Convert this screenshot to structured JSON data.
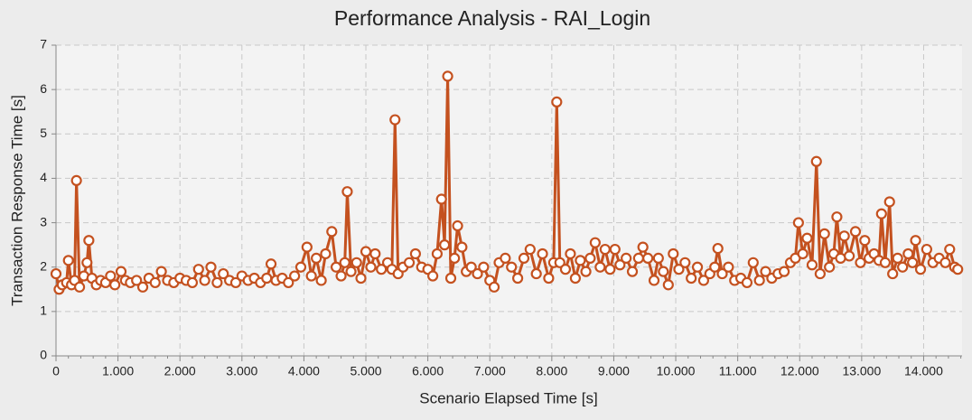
{
  "chart_data": {
    "type": "line",
    "title": "Performance Analysis - RAI_Login",
    "x_label": "Scenario Elapsed Time [s]",
    "y_label": "Transaction Response Time [s]",
    "color": "#c4511f",
    "grid": true,
    "xlim": [
      0,
      14.62
    ],
    "ylim": [
      0,
      7
    ],
    "xticks": [
      0,
      {
        "value": 1,
        "label": "1.000"
      },
      {
        "value": 2,
        "label": "2.000"
      },
      {
        "value": 3,
        "label": "3.000"
      },
      {
        "value": 4,
        "label": "4.000"
      },
      {
        "value": 5,
        "label": "5.000"
      },
      {
        "value": 6,
        "label": "6.000"
      },
      {
        "value": 7,
        "label": "7.000"
      },
      {
        "value": 8,
        "label": "8.000"
      },
      {
        "value": 9,
        "label": "9.000"
      },
      {
        "value": 10,
        "label": "10.000"
      },
      {
        "value": 11,
        "label": "11.000"
      },
      {
        "value": 12,
        "label": "12.000"
      },
      {
        "value": 13,
        "label": "13.000"
      },
      {
        "value": 14,
        "label": "14.000"
      }
    ],
    "yticks": [
      0,
      1,
      2,
      3,
      4,
      5,
      6,
      7
    ],
    "x": [
      0,
      0.05,
      0.1,
      0.17,
      0.2,
      0.25,
      0.3,
      0.33,
      0.38,
      0.45,
      0.5,
      0.53,
      0.58,
      0.65,
      0.72,
      0.8,
      0.88,
      0.95,
      1.05,
      1.12,
      1.2,
      1.3,
      1.4,
      1.5,
      1.6,
      1.7,
      1.8,
      1.9,
      2.0,
      2.1,
      2.2,
      2.3,
      2.4,
      2.5,
      2.6,
      2.7,
      2.8,
      2.9,
      3.0,
      3.1,
      3.2,
      3.3,
      3.4,
      3.47,
      3.55,
      3.65,
      3.75,
      3.85,
      3.95,
      4.05,
      4.12,
      4.2,
      4.28,
      4.35,
      4.45,
      4.52,
      4.6,
      4.66,
      4.7,
      4.76,
      4.85,
      4.92,
      5.0,
      5.08,
      5.15,
      5.25,
      5.35,
      5.42,
      5.47,
      5.52,
      5.6,
      5.7,
      5.8,
      5.9,
      6.0,
      6.08,
      6.15,
      6.22,
      6.27,
      6.32,
      6.37,
      6.43,
      6.48,
      6.55,
      6.62,
      6.7,
      6.8,
      6.9,
      7.0,
      7.07,
      7.15,
      7.25,
      7.35,
      7.45,
      7.55,
      7.65,
      7.75,
      7.85,
      7.95,
      8.03,
      8.08,
      8.13,
      8.22,
      8.3,
      8.38,
      8.46,
      8.55,
      8.62,
      8.7,
      8.78,
      8.86,
      8.94,
      9.02,
      9.1,
      9.2,
      9.3,
      9.4,
      9.47,
      9.55,
      9.65,
      9.72,
      9.8,
      9.88,
      9.96,
      10.05,
      10.15,
      10.25,
      10.35,
      10.45,
      10.55,
      10.63,
      10.68,
      10.75,
      10.85,
      10.95,
      11.05,
      11.15,
      11.25,
      11.35,
      11.45,
      11.55,
      11.65,
      11.75,
      11.85,
      11.93,
      11.98,
      12.05,
      12.12,
      12.2,
      12.27,
      12.33,
      12.4,
      12.48,
      12.55,
      12.6,
      12.66,
      12.72,
      12.8,
      12.9,
      12.98,
      13.05,
      13.12,
      13.2,
      13.28,
      13.32,
      13.38,
      13.45,
      13.5,
      13.58,
      13.66,
      13.75,
      13.82,
      13.87,
      13.95,
      14.05,
      14.15,
      14.25,
      14.35,
      14.42,
      14.5,
      14.55
    ],
    "series": [
      {
        "name": "RAI_Login",
        "color": "#c4511f",
        "values": [
          1.85,
          1.5,
          1.6,
          1.65,
          2.15,
          1.6,
          1.7,
          3.95,
          1.55,
          1.8,
          2.1,
          2.6,
          1.75,
          1.6,
          1.7,
          1.65,
          1.8,
          1.6,
          1.9,
          1.7,
          1.65,
          1.7,
          1.55,
          1.75,
          1.65,
          1.9,
          1.7,
          1.65,
          1.75,
          1.7,
          1.65,
          1.95,
          1.7,
          2.0,
          1.65,
          1.85,
          1.7,
          1.65,
          1.8,
          1.7,
          1.75,
          1.65,
          1.75,
          2.07,
          1.7,
          1.75,
          1.65,
          1.8,
          2.0,
          2.45,
          1.8,
          2.2,
          1.7,
          2.3,
          2.8,
          2.0,
          1.8,
          2.1,
          3.7,
          1.9,
          2.1,
          1.75,
          2.35,
          2.0,
          2.3,
          1.95,
          2.1,
          1.95,
          5.32,
          1.85,
          2.0,
          2.1,
          2.3,
          2.0,
          1.95,
          1.8,
          2.3,
          3.53,
          2.5,
          6.3,
          1.75,
          2.2,
          2.93,
          2.45,
          1.9,
          2.0,
          1.85,
          2.0,
          1.7,
          1.55,
          2.1,
          2.2,
          2.0,
          1.75,
          2.2,
          2.4,
          1.85,
          2.3,
          1.75,
          2.1,
          5.72,
          2.1,
          1.95,
          2.3,
          1.75,
          2.15,
          1.9,
          2.2,
          2.55,
          2.0,
          2.4,
          1.95,
          2.4,
          2.05,
          2.2,
          1.9,
          2.2,
          2.45,
          2.2,
          1.7,
          2.2,
          1.9,
          1.6,
          2.3,
          1.95,
          2.1,
          1.75,
          2.0,
          1.7,
          1.85,
          2.0,
          2.42,
          1.85,
          2.0,
          1.7,
          1.75,
          1.65,
          2.1,
          1.7,
          1.9,
          1.75,
          1.85,
          1.9,
          2.1,
          2.2,
          3.0,
          2.3,
          2.65,
          2.05,
          4.38,
          1.85,
          2.75,
          2.0,
          2.3,
          3.13,
          2.2,
          2.7,
          2.25,
          2.8,
          2.1,
          2.6,
          2.2,
          2.3,
          2.15,
          3.2,
          2.1,
          3.47,
          1.85,
          2.2,
          2.0,
          2.3,
          2.1,
          2.6,
          1.95,
          2.4,
          2.1,
          2.2,
          2.1,
          2.4,
          2.0,
          1.95
        ]
      }
    ]
  }
}
